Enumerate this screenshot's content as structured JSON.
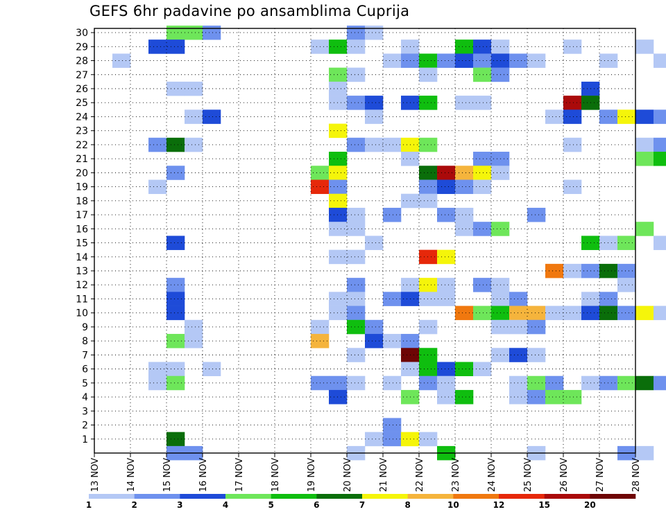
{
  "title": "GEFS 6hr padavine po ansamblima Cuprija",
  "chart_data": {
    "type": "heatmap",
    "title": "GEFS 6hr padavine po ansamblima Cuprija",
    "x_ticks": [
      "13 NOV",
      "14 NOV",
      "15 NOV",
      "16 NOV",
      "17 NOV",
      "18 NOV",
      "19 NOV",
      "20 NOV",
      "21 NOV",
      "22 NOV",
      "23 NOV",
      "24 NOV",
      "25 NOV",
      "26 NOV",
      "27 NOV",
      "28 NOV"
    ],
    "y_ticks": [
      "1",
      "2",
      "3",
      "4",
      "5",
      "6",
      "7",
      "8",
      "9",
      "10",
      "11",
      "12",
      "13",
      "14",
      "15",
      "16",
      "17",
      "18",
      "19",
      "20",
      "21",
      "22",
      "23",
      "24",
      "25",
      "26",
      "27",
      "28",
      "29",
      "30"
    ],
    "xlim": [
      0,
      60
    ],
    "ylim": [
      0,
      30
    ],
    "grid": true,
    "legend": {
      "position": "bottom",
      "levels": [
        "1",
        "2",
        "3",
        "4",
        "5",
        "6",
        "7",
        "8",
        "10",
        "12",
        "15",
        "20"
      ],
      "colors": [
        "#b4c8f5",
        "#6e91ee",
        "#1e4bd8",
        "#6ee65a",
        "#0fbe0f",
        "#0a6e0a",
        "#f5f50a",
        "#f5b43c",
        "#f0780f",
        "#e6280a",
        "#aa0a0a",
        "#6e0505"
      ]
    },
    "cells": [
      {
        "m": 30,
        "t": [
          [
            3,
            3
          ],
          [
            4,
            3
          ],
          [
            5,
            1
          ],
          [
            13,
            1
          ],
          [
            14,
            0
          ]
        ]
      },
      {
        "m": 29,
        "t": [
          [
            2,
            2
          ],
          [
            3,
            2
          ],
          [
            11,
            0
          ],
          [
            12,
            4
          ],
          [
            13,
            0
          ],
          [
            16,
            0
          ],
          [
            19,
            4
          ],
          [
            20,
            2
          ],
          [
            21,
            0
          ],
          [
            25,
            0
          ],
          [
            29,
            0
          ]
        ]
      },
      {
        "m": 28,
        "t": [
          [
            0,
            0
          ],
          [
            15,
            0
          ],
          [
            16,
            1
          ],
          [
            17,
            4
          ],
          [
            18,
            1
          ],
          [
            19,
            2
          ],
          [
            20,
            1
          ],
          [
            21,
            2
          ],
          [
            22,
            1
          ],
          [
            23,
            0
          ],
          [
            27,
            0
          ],
          [
            30,
            0
          ],
          [
            31,
            0
          ],
          [
            32,
            1
          ]
        ]
      },
      {
        "m": 27,
        "t": [
          [
            12,
            3
          ],
          [
            13,
            0
          ],
          [
            17,
            0
          ],
          [
            20,
            3
          ],
          [
            21,
            1
          ]
        ]
      },
      {
        "m": 26,
        "t": [
          [
            3,
            0
          ],
          [
            4,
            0
          ],
          [
            12,
            0
          ],
          [
            26,
            2
          ]
        ]
      },
      {
        "m": 25,
        "t": [
          [
            12,
            0
          ],
          [
            13,
            1
          ],
          [
            14,
            2
          ],
          [
            16,
            2
          ],
          [
            17,
            4
          ],
          [
            19,
            0
          ],
          [
            20,
            0
          ],
          [
            25,
            10
          ],
          [
            26,
            5
          ]
        ]
      },
      {
        "m": 24,
        "t": [
          [
            4,
            0
          ],
          [
            5,
            2
          ],
          [
            14,
            0
          ],
          [
            24,
            0
          ],
          [
            25,
            2
          ],
          [
            27,
            1
          ],
          [
            28,
            6
          ],
          [
            29,
            2
          ],
          [
            30,
            1
          ]
        ]
      },
      {
        "m": 23,
        "t": [
          [
            12,
            6
          ]
        ]
      },
      {
        "m": 22,
        "t": [
          [
            2,
            1
          ],
          [
            3,
            5
          ],
          [
            4,
            0
          ],
          [
            13,
            1
          ],
          [
            14,
            0
          ],
          [
            15,
            0
          ],
          [
            16,
            6
          ],
          [
            17,
            3
          ],
          [
            25,
            0
          ],
          [
            29,
            0
          ],
          [
            30,
            1
          ]
        ]
      },
      {
        "m": 21,
        "t": [
          [
            12,
            4
          ],
          [
            16,
            0
          ],
          [
            20,
            1
          ],
          [
            21,
            1
          ],
          [
            29,
            3
          ],
          [
            30,
            4
          ],
          [
            31,
            6
          ]
        ]
      },
      {
        "m": 20,
        "t": [
          [
            3,
            1
          ],
          [
            11,
            3
          ],
          [
            12,
            6
          ],
          [
            17,
            5
          ],
          [
            18,
            10
          ],
          [
            19,
            7
          ],
          [
            20,
            6
          ],
          [
            21,
            0
          ],
          [
            31,
            0
          ]
        ]
      },
      {
        "m": 19,
        "t": [
          [
            2,
            0
          ],
          [
            11,
            9
          ],
          [
            12,
            1
          ],
          [
            17,
            1
          ],
          [
            18,
            2
          ],
          [
            19,
            1
          ],
          [
            20,
            0
          ],
          [
            25,
            0
          ],
          [
            31,
            4
          ]
        ]
      },
      {
        "m": 18,
        "t": [
          [
            12,
            6
          ],
          [
            16,
            0
          ],
          [
            17,
            0
          ]
        ]
      },
      {
        "m": 17,
        "t": [
          [
            12,
            2
          ],
          [
            13,
            0
          ],
          [
            15,
            1
          ],
          [
            18,
            1
          ],
          [
            19,
            0
          ],
          [
            23,
            1
          ],
          [
            31,
            0
          ]
        ]
      },
      {
        "m": 16,
        "t": [
          [
            12,
            0
          ],
          [
            13,
            0
          ],
          [
            19,
            0
          ],
          [
            20,
            1
          ],
          [
            21,
            3
          ],
          [
            29,
            3
          ]
        ]
      },
      {
        "m": 15,
        "t": [
          [
            3,
            2
          ],
          [
            14,
            0
          ],
          [
            26,
            4
          ],
          [
            27,
            0
          ],
          [
            28,
            3
          ],
          [
            30,
            0
          ],
          [
            31,
            0
          ]
        ]
      },
      {
        "m": 14,
        "t": [
          [
            12,
            0
          ],
          [
            13,
            0
          ],
          [
            17,
            9
          ],
          [
            18,
            6
          ]
        ]
      },
      {
        "m": 13,
        "t": [
          [
            24,
            8
          ],
          [
            25,
            0
          ],
          [
            26,
            1
          ],
          [
            27,
            5
          ],
          [
            28,
            1
          ]
        ]
      },
      {
        "m": 12,
        "t": [
          [
            3,
            1
          ],
          [
            13,
            1
          ],
          [
            16,
            0
          ],
          [
            17,
            6
          ],
          [
            18,
            0
          ],
          [
            20,
            1
          ],
          [
            21,
            0
          ],
          [
            28,
            0
          ]
        ]
      },
      {
        "m": 11,
        "t": [
          [
            3,
            2
          ],
          [
            12,
            0
          ],
          [
            13,
            0
          ],
          [
            15,
            1
          ],
          [
            16,
            2
          ],
          [
            17,
            0
          ],
          [
            18,
            0
          ],
          [
            21,
            0
          ],
          [
            22,
            1
          ],
          [
            26,
            0
          ],
          [
            27,
            1
          ]
        ]
      },
      {
        "m": 10,
        "t": [
          [
            3,
            2
          ],
          [
            12,
            0
          ],
          [
            13,
            1
          ],
          [
            19,
            8
          ],
          [
            20,
            3
          ],
          [
            21,
            4
          ],
          [
            22,
            7
          ],
          [
            23,
            7
          ],
          [
            24,
            0
          ],
          [
            25,
            0
          ],
          [
            26,
            2
          ],
          [
            27,
            5
          ],
          [
            28,
            1
          ],
          [
            29,
            6
          ],
          [
            30,
            0
          ]
        ]
      },
      {
        "m": 9,
        "t": [
          [
            4,
            0
          ],
          [
            11,
            0
          ],
          [
            13,
            4
          ],
          [
            14,
            1
          ],
          [
            17,
            0
          ],
          [
            21,
            0
          ],
          [
            22,
            0
          ],
          [
            23,
            1
          ]
        ]
      },
      {
        "m": 8,
        "t": [
          [
            3,
            3
          ],
          [
            4,
            0
          ],
          [
            11,
            7
          ],
          [
            14,
            2
          ],
          [
            15,
            0
          ],
          [
            16,
            1
          ]
        ]
      },
      {
        "m": 7,
        "t": [
          [
            13,
            0
          ],
          [
            16,
            11
          ],
          [
            17,
            4
          ],
          [
            21,
            0
          ],
          [
            22,
            2
          ],
          [
            23,
            0
          ]
        ]
      },
      {
        "m": 6,
        "t": [
          [
            2,
            0
          ],
          [
            3,
            0
          ],
          [
            5,
            0
          ],
          [
            16,
            0
          ],
          [
            17,
            4
          ],
          [
            18,
            2
          ],
          [
            19,
            4
          ],
          [
            20,
            0
          ]
        ]
      },
      {
        "m": 5,
        "t": [
          [
            2,
            0
          ],
          [
            3,
            3
          ],
          [
            11,
            1
          ],
          [
            12,
            1
          ],
          [
            13,
            0
          ],
          [
            15,
            0
          ],
          [
            17,
            1
          ],
          [
            18,
            0
          ],
          [
            22,
            0
          ],
          [
            23,
            3
          ],
          [
            24,
            1
          ],
          [
            26,
            0
          ],
          [
            27,
            1
          ],
          [
            28,
            3
          ],
          [
            29,
            5
          ],
          [
            30,
            1
          ]
        ]
      },
      {
        "m": 4,
        "t": [
          [
            12,
            2
          ],
          [
            16,
            3
          ],
          [
            18,
            0
          ],
          [
            19,
            4
          ],
          [
            22,
            0
          ],
          [
            23,
            1
          ],
          [
            24,
            3
          ],
          [
            25,
            3
          ],
          [
            31,
            1
          ],
          [
            32,
            0
          ]
        ]
      },
      {
        "m": 3,
        "t": [
          [
            31,
            0
          ],
          [
            32,
            0
          ]
        ]
      },
      {
        "m": 2,
        "t": [
          [
            15,
            1
          ]
        ]
      },
      {
        "m": 1,
        "t": [
          [
            3,
            5
          ],
          [
            14,
            0
          ],
          [
            15,
            1
          ],
          [
            16,
            6
          ],
          [
            17,
            0
          ]
        ]
      },
      {
        "m": 0,
        "t": [
          [
            3,
            1
          ],
          [
            4,
            1
          ],
          [
            13,
            0
          ],
          [
            18,
            4
          ],
          [
            23,
            0
          ],
          [
            28,
            1
          ],
          [
            29,
            0
          ]
        ]
      }
    ]
  }
}
